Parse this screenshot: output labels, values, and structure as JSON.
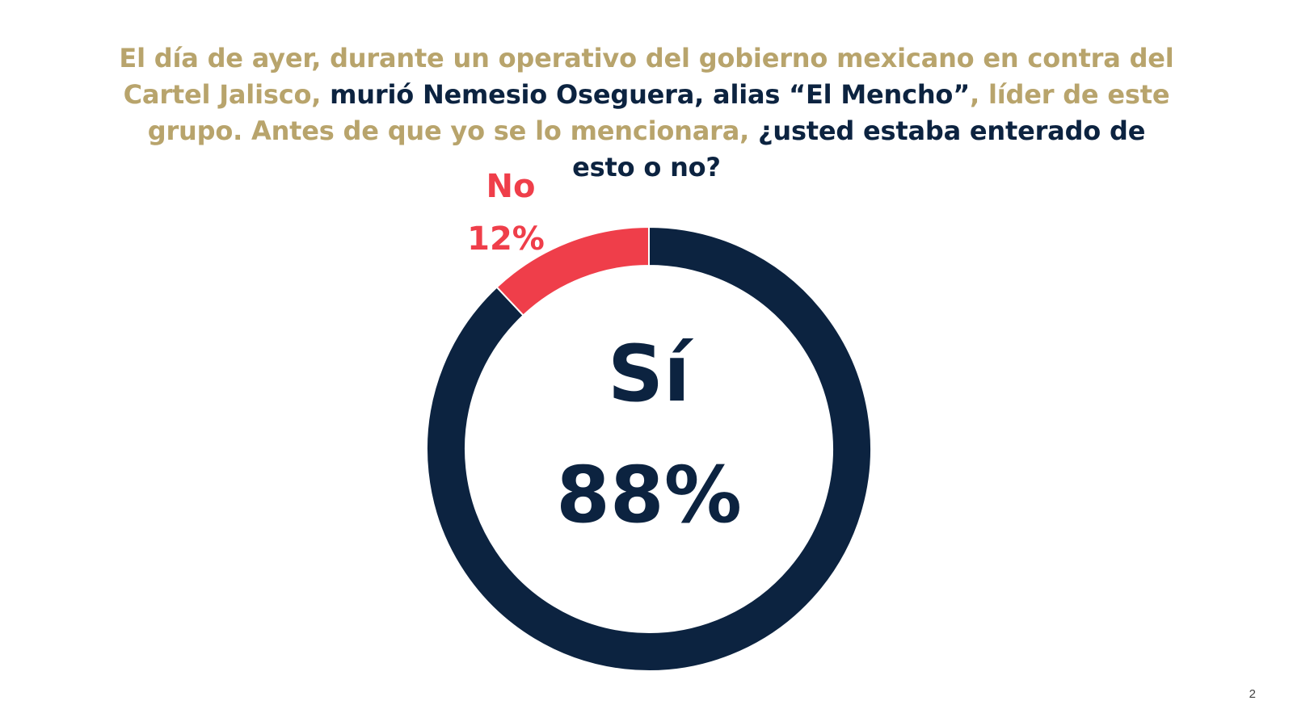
{
  "slide": {
    "question": [
      {
        "text": "El día de ayer, durante un operativo del gobierno mexicano en contra del Cartel Jalisco, ",
        "style": "gold"
      },
      {
        "text": "murió Nemesio Oseguera, alias “El Mencho”",
        "style": "navy"
      },
      {
        "text": ", líder de este grupo. Antes de que yo se lo mencionara, ",
        "style": "gold"
      },
      {
        "text": "¿usted estaba enterado de esto o no?",
        "style": "navy"
      }
    ],
    "page_number": "2"
  },
  "colors": {
    "gold": "#B8A46C",
    "navy": "#0C2340",
    "red": "#EF3E4A",
    "background": "#FFFFFF"
  },
  "chart_data": {
    "type": "pie",
    "donut": true,
    "start_angle_deg": 0,
    "direction": "clockwise",
    "categories": [
      "Sí",
      "No"
    ],
    "values": [
      88,
      12
    ],
    "value_labels": [
      "88%",
      "12%"
    ],
    "colors": [
      "#0C2340",
      "#EF3E4A"
    ],
    "legend": "none"
  }
}
